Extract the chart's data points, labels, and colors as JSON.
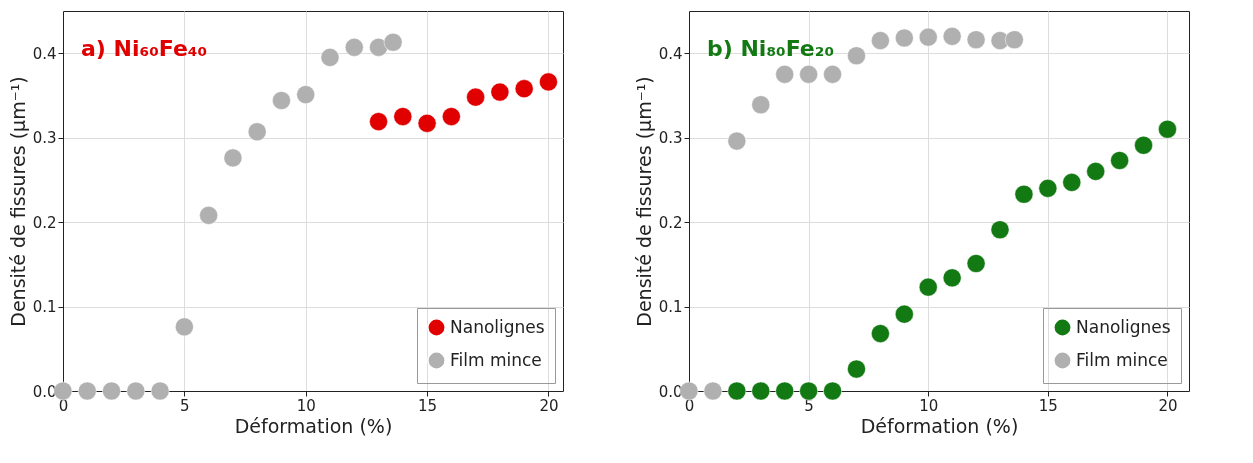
{
  "chart_data": [
    {
      "type": "scatter",
      "title": "a) Ni₆₀Fe₄₀",
      "xlabel": "Déformation (%)",
      "ylabel": "Densité de fissures (µm⁻¹)",
      "xlim": [
        0,
        20.6
      ],
      "ylim": [
        0,
        0.45
      ],
      "xticks": [
        0,
        5,
        10,
        15,
        20
      ],
      "yticks": [
        {
          "value": 0,
          "label": "0.0"
        },
        0.1,
        0.2,
        0.3,
        0.4
      ],
      "grid": true,
      "legend": "bottom right",
      "marker": "circle",
      "series": [
        {
          "name": "Nanolignes",
          "color": "#e00000",
          "x": [
            13,
            14,
            15,
            16,
            17,
            18,
            19,
            20
          ],
          "values": [
            0.319,
            0.325,
            0.317,
            0.325,
            0.348,
            0.354,
            0.358,
            0.366
          ]
        },
        {
          "name": "Film mince",
          "color": "#b0b0b0",
          "x": [
            0,
            1,
            2,
            3,
            4,
            5,
            6,
            7,
            8,
            9,
            10,
            11,
            12,
            13,
            13.6
          ],
          "values": [
            0,
            0,
            0,
            0,
            0,
            0.076,
            0.208,
            0.276,
            0.307,
            0.344,
            0.351,
            0.395,
            0.407,
            0.407,
            0.413
          ]
        }
      ]
    },
    {
      "type": "scatter",
      "title": "b) Ni₈₀Fe₂₀",
      "xlabel": "Déformation (%)",
      "ylabel": "Densité de fissures (µm⁻¹)",
      "xlim": [
        0,
        20.9
      ],
      "ylim": [
        0,
        0.45
      ],
      "xticks": [
        0,
        5,
        10,
        15,
        20
      ],
      "yticks": [
        {
          "value": 0,
          "label": "0.0"
        },
        0.1,
        0.2,
        0.3,
        0.4
      ],
      "grid": true,
      "legend": "bottom right",
      "marker": "circle",
      "series": [
        {
          "name": "Nanolignes",
          "color": "#137a13",
          "x": [
            2,
            3,
            4,
            5,
            6,
            7,
            8,
            9,
            10,
            11,
            12,
            13,
            14,
            15,
            16,
            17,
            18,
            19,
            20
          ],
          "values": [
            0,
            0,
            0,
            0,
            0,
            0.026,
            0.068,
            0.091,
            0.123,
            0.134,
            0.151,
            0.191,
            0.233,
            0.24,
            0.247,
            0.26,
            0.273,
            0.291,
            0.31
          ]
        },
        {
          "name": "Film mince",
          "color": "#b0b0b0",
          "x": [
            0,
            1,
            2,
            3,
            4,
            5,
            6,
            7,
            8,
            9,
            10,
            11,
            12,
            13,
            13.6
          ],
          "values": [
            0,
            0,
            0.296,
            0.339,
            0.375,
            0.375,
            0.375,
            0.397,
            0.415,
            0.418,
            0.419,
            0.42,
            0.416,
            0.415,
            0.416
          ]
        }
      ]
    }
  ]
}
